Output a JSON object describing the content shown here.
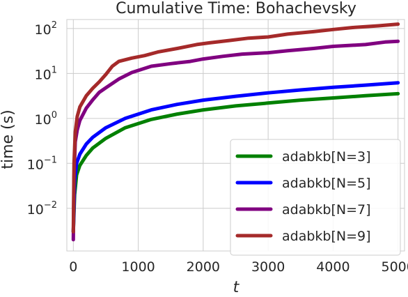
{
  "chart_data": {
    "type": "line",
    "title": "Cumulative Time: Bohachevsky",
    "xlabel": "t",
    "ylabel": "time (s)",
    "xlim": [
      -100,
      5100
    ],
    "ylim_log10": [
      -2.95,
      2.2
    ],
    "yscale": "log",
    "grid": true,
    "legend_position": "lower-right",
    "x_ticks": [
      {
        "value": 0,
        "label": "0"
      },
      {
        "value": 1000,
        "label": "1000"
      },
      {
        "value": 2000,
        "label": "2000"
      },
      {
        "value": 3000,
        "label": "3000"
      },
      {
        "value": 4000,
        "label": "4000"
      },
      {
        "value": 5000,
        "label": "5000"
      }
    ],
    "y_ticks": [
      {
        "exp": -2,
        "base": "10",
        "sup": "−2"
      },
      {
        "exp": -1,
        "base": "10",
        "sup": "−1"
      },
      {
        "exp": 0,
        "base": "10",
        "sup": "0"
      },
      {
        "exp": 1,
        "base": "10",
        "sup": "1"
      },
      {
        "exp": 2,
        "base": "10",
        "sup": "2"
      }
    ],
    "series": [
      {
        "name": "adabkb[N=3]",
        "color": "#008000",
        "x": [
          0,
          20,
          50,
          100,
          200,
          300,
          500,
          800,
          1200,
          1600,
          2000,
          2500,
          3000,
          3500,
          4000,
          4500,
          5000
        ],
        "y": [
          0.003,
          0.02,
          0.055,
          0.09,
          0.15,
          0.22,
          0.36,
          0.62,
          0.95,
          1.25,
          1.55,
          1.9,
          2.2,
          2.55,
          2.85,
          3.2,
          3.55
        ]
      },
      {
        "name": "adabkb[N=5]",
        "color": "#0000ff",
        "x": [
          0,
          20,
          50,
          100,
          200,
          300,
          500,
          800,
          1200,
          1600,
          2000,
          2500,
          3000,
          3500,
          4000,
          4500,
          5000
        ],
        "y": [
          0.003,
          0.04,
          0.1,
          0.16,
          0.27,
          0.38,
          0.62,
          1.0,
          1.55,
          2.05,
          2.55,
          3.1,
          3.7,
          4.3,
          4.9,
          5.5,
          6.2
        ]
      },
      {
        "name": "adabkb[N=7]",
        "color": "#800080",
        "x": [
          0,
          10,
          30,
          60,
          100,
          200,
          300,
          400,
          500,
          700,
          900,
          1200,
          1500,
          1800,
          2000,
          2300,
          2600,
          3000,
          3300,
          3700,
          4000,
          4500,
          4800,
          5000
        ],
        "y": [
          0.002,
          0.05,
          0.3,
          0.55,
          0.9,
          1.7,
          2.6,
          3.8,
          4.8,
          7.5,
          10.5,
          14.5,
          16.5,
          18.5,
          21,
          24,
          27,
          29,
          32,
          36,
          40,
          44,
          50,
          52
        ]
      },
      {
        "name": "adabkb[N=9]",
        "color": "#a52a2a",
        "x": [
          0,
          10,
          30,
          60,
          100,
          200,
          300,
          400,
          500,
          600,
          700,
          900,
          1100,
          1300,
          1600,
          1900,
          2100,
          2400,
          2700,
          3000,
          3300,
          3700,
          4000,
          4300,
          4700,
          5000
        ],
        "y": [
          0.003,
          0.1,
          0.5,
          1.1,
          1.8,
          3.2,
          4.7,
          6.5,
          9.5,
          14.5,
          18.5,
          22,
          25,
          30,
          36,
          44,
          48,
          54,
          61,
          65,
          75,
          85,
          95,
          105,
          115,
          125
        ]
      }
    ]
  }
}
